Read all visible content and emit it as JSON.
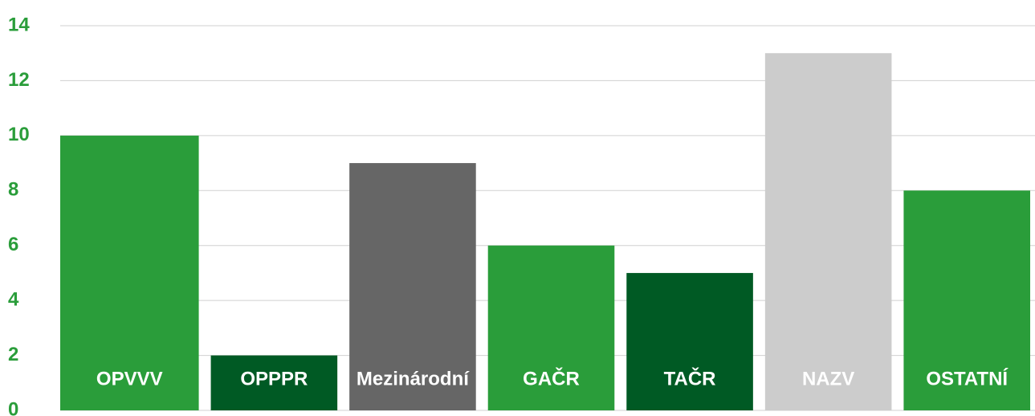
{
  "chart_data": {
    "type": "bar",
    "categories": [
      "OPVVV",
      "OPPPR",
      "Mezinárodní",
      "GAČR",
      "TAČR",
      "NAZV",
      "OSTATNÍ"
    ],
    "values": [
      10,
      2,
      9,
      6,
      5,
      13,
      8
    ],
    "colors": [
      "#2a9d3a",
      "#005a24",
      "#666666",
      "#2a9d3a",
      "#005a24",
      "#cccccc",
      "#2a9d3a"
    ],
    "ylim": [
      0,
      14
    ],
    "yticks": [
      0,
      2,
      4,
      6,
      8,
      10,
      12,
      14
    ],
    "grid": true
  }
}
